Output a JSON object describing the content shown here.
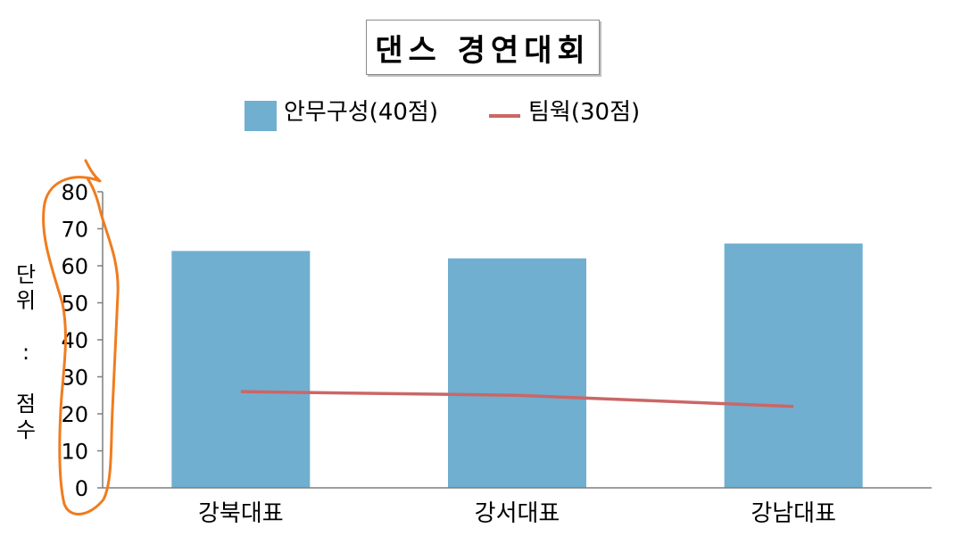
{
  "chart_data": {
    "type": "bar",
    "title": "댄스 경연대회",
    "categories": [
      "강북대표",
      "강서대표",
      "강남대표"
    ],
    "series": [
      {
        "name": "안무구성(40점)",
        "type": "bar",
        "color": "#70AFD0",
        "values": [
          64,
          62,
          66
        ]
      },
      {
        "name": "팀웍(30점)",
        "type": "line",
        "color": "#CC6666",
        "values": [
          26,
          25,
          22
        ]
      }
    ],
    "ylabel": "단위 : 점수",
    "yticks": [
      0,
      10,
      20,
      30,
      40,
      50,
      60,
      70,
      80
    ],
    "ylim": [
      0,
      80
    ],
    "grid": false,
    "legend_position": "top",
    "annotation": {
      "type": "hand-drawn circle around y-axis",
      "color": "#F07C1E"
    }
  }
}
